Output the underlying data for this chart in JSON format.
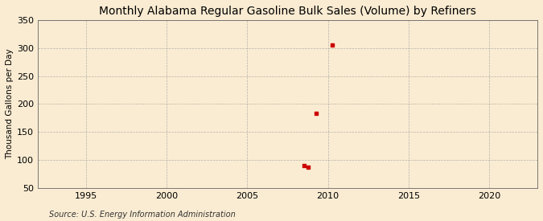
{
  "title": "Monthly Alabama Regular Gasoline Bulk Sales (Volume) by Refiners",
  "ylabel": "Thousand Gallons per Day",
  "source": "Source: U.S. Energy Information Administration",
  "background_color": "#faecd2",
  "plot_background_color": "#faecd2",
  "grid_color": "#999999",
  "data_color": "#cc0000",
  "xlim": [
    1992,
    2023
  ],
  "ylim": [
    50,
    350
  ],
  "xticks": [
    1995,
    2000,
    2005,
    2010,
    2015,
    2020
  ],
  "yticks": [
    50,
    100,
    150,
    200,
    250,
    300,
    350
  ],
  "data_x": [
    2008.5,
    2008.75,
    2009.25,
    2010.25
  ],
  "data_y": [
    90,
    87,
    183,
    305
  ],
  "title_fontsize": 10,
  "label_fontsize": 7.5,
  "tick_fontsize": 8,
  "source_fontsize": 7
}
